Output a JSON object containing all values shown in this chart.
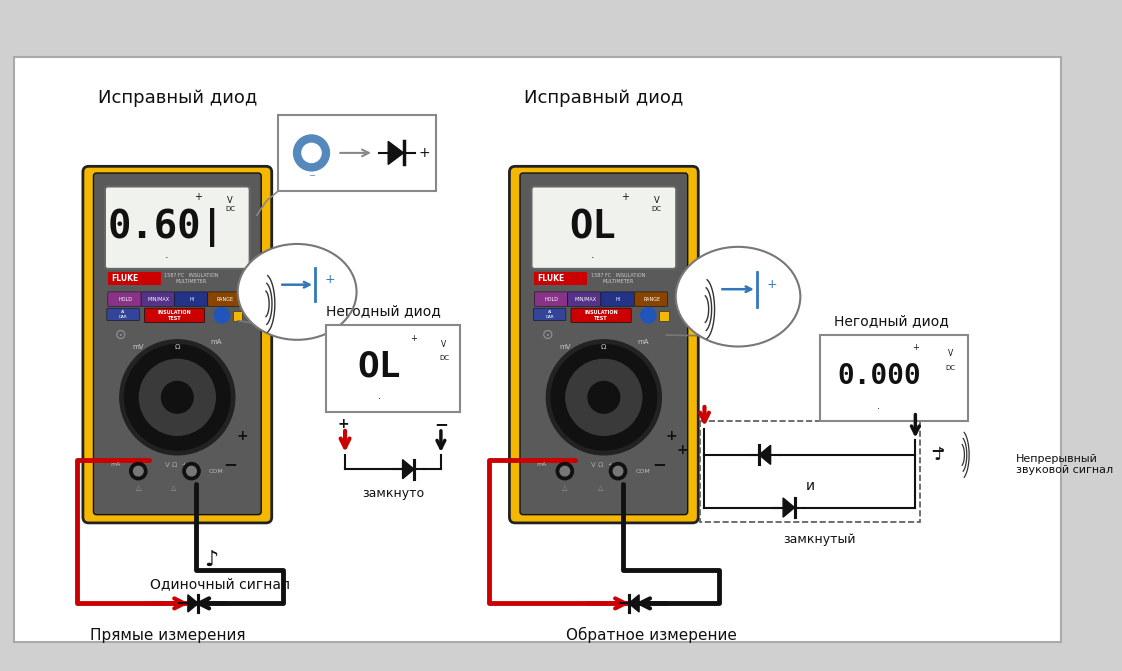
{
  "figure_bg": "#d0d0d0",
  "panel_bg": "#ffffff",
  "colors": {
    "yellow": "#F5B800",
    "dark_gray": "#3a3a3a",
    "red": "#cc0000",
    "black": "#111111",
    "meter_body": "#5a5a5a",
    "display_bg": "#f0f2ee",
    "blue": "#3377bb",
    "light_gray": "#dddddd",
    "border_gray": "#888888"
  },
  "left_title": "Исправный диод",
  "right_title": "Исправный диод",
  "left_bottom": "Прямые измерения",
  "right_bottom": "Обратное измерение",
  "left_signal": "Одиночный сигнал",
  "zamknuto": "замкнуто",
  "zamknuty": "замкнутый",
  "negodny": "Негодный диод",
  "nepreryvny": "Непрерывный\nзвуковой сигнал",
  "i_text": "и"
}
